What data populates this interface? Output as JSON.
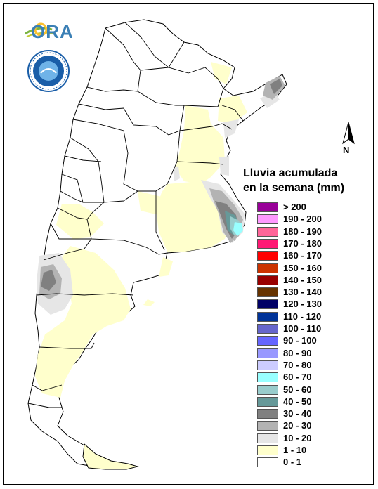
{
  "logo": {
    "ora_text": "ORA"
  },
  "north_arrow": {
    "label": "N"
  },
  "legend": {
    "title_line1": "Lluvia acumulada",
    "title_line2": "en la semana (mm)",
    "items": [
      {
        "label": "> 200",
        "color": "#990099"
      },
      {
        "label": "190 - 200",
        "color": "#ff99ff"
      },
      {
        "label": "180 - 190",
        "color": "#ff6699"
      },
      {
        "label": "170 - 180",
        "color": "#ff1a75"
      },
      {
        "label": "160 - 170",
        "color": "#ff0000"
      },
      {
        "label": "150 - 160",
        "color": "#cc3300"
      },
      {
        "label": "140 - 150",
        "color": "#990000"
      },
      {
        "label": "130 - 140",
        "color": "#663300"
      },
      {
        "label": "120 - 130",
        "color": "#000066"
      },
      {
        "label": "110 - 120",
        "color": "#003399"
      },
      {
        "label": "100 - 110",
        "color": "#6666cc"
      },
      {
        "label": "90 - 100",
        "color": "#6666ff"
      },
      {
        "label": "80 - 90",
        "color": "#9999ff"
      },
      {
        "label": "70 - 80",
        "color": "#ccccff"
      },
      {
        "label": "60 - 70",
        "color": "#99ffff"
      },
      {
        "label": "50 - 60",
        "color": "#99cccc"
      },
      {
        "label": "40 - 50",
        "color": "#669999"
      },
      {
        "label": "30 - 40",
        "color": "#808080"
      },
      {
        "label": "20 - 30",
        "color": "#b3b3b3"
      },
      {
        "label": "10 - 20",
        "color": "#e6e6e6"
      },
      {
        "label": "1 - 10",
        "color": "#ffffcc"
      },
      {
        "label": "0 - 1",
        "color": "#ffffff"
      }
    ]
  }
}
